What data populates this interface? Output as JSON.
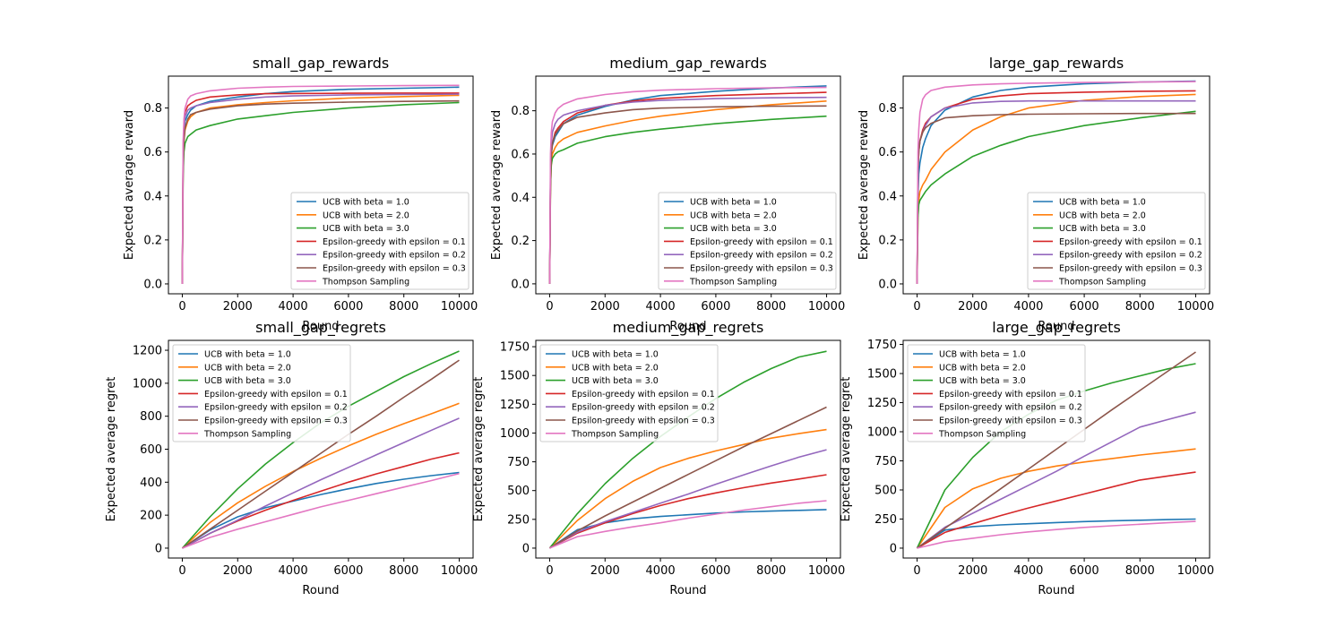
{
  "legend_labels": [
    "UCB with beta = 1.0",
    "UCB with beta = 2.0",
    "UCB with beta = 3.0",
    "Epsilon-greedy with epsilon = 0.1",
    "Epsilon-greedy with epsilon = 0.2",
    "Epsilon-greedy with epsilon = 0.3",
    "Thompson Sampling"
  ],
  "series_colors": [
    "#1f77b4",
    "#ff7f0e",
    "#2ca02c",
    "#d62728",
    "#9467bd",
    "#8c564b",
    "#e377c2"
  ],
  "chart_data": [
    {
      "type": "line",
      "title": "small_gap_rewards",
      "xlabel": "Round",
      "ylabel": "Expected average reward",
      "xlim": [
        -500,
        10500
      ],
      "ylim": [
        -0.045,
        0.945
      ],
      "xticks": [
        0,
        2000,
        4000,
        6000,
        8000,
        10000
      ],
      "yticks": [
        0.0,
        0.2,
        0.4,
        0.6,
        0.8
      ],
      "ytick_labels": [
        "0.0",
        "0.2",
        "0.4",
        "0.6",
        "0.8"
      ],
      "legend_position": "lower-right",
      "x": [
        0,
        30,
        60,
        100,
        200,
        300,
        500,
        1000,
        2000,
        3000,
        4000,
        6000,
        8000,
        10000
      ],
      "series": [
        {
          "name": "UCB with beta = 1.0",
          "values": [
            0.0,
            0.58,
            0.68,
            0.74,
            0.77,
            0.79,
            0.81,
            0.83,
            0.85,
            0.865,
            0.875,
            0.885,
            0.89,
            0.895
          ]
        },
        {
          "name": "UCB with beta = 2.0",
          "values": [
            0.0,
            0.55,
            0.65,
            0.7,
            0.74,
            0.76,
            0.78,
            0.8,
            0.815,
            0.825,
            0.833,
            0.845,
            0.852,
            0.858
          ]
        },
        {
          "name": "UCB with beta = 3.0",
          "values": [
            0.0,
            0.5,
            0.6,
            0.64,
            0.67,
            0.68,
            0.7,
            0.72,
            0.75,
            0.765,
            0.78,
            0.8,
            0.815,
            0.825
          ]
        },
        {
          "name": "Epsilon-greedy with epsilon = 0.1",
          "values": [
            0.0,
            0.62,
            0.72,
            0.78,
            0.81,
            0.82,
            0.835,
            0.85,
            0.86,
            0.865,
            0.866,
            0.867,
            0.868,
            0.868
          ]
        },
        {
          "name": "Epsilon-greedy with epsilon = 0.2",
          "values": [
            0.0,
            0.6,
            0.7,
            0.76,
            0.79,
            0.8,
            0.81,
            0.825,
            0.84,
            0.85,
            0.855,
            0.86,
            0.862,
            0.863
          ]
        },
        {
          "name": "Epsilon-greedy with epsilon = 0.3",
          "values": [
            0.0,
            0.55,
            0.65,
            0.71,
            0.75,
            0.77,
            0.78,
            0.795,
            0.81,
            0.818,
            0.822,
            0.827,
            0.83,
            0.832
          ]
        },
        {
          "name": "Thompson Sampling",
          "values": [
            0.0,
            0.65,
            0.75,
            0.8,
            0.84,
            0.855,
            0.865,
            0.878,
            0.89,
            0.895,
            0.898,
            0.9,
            0.902,
            0.903
          ]
        }
      ]
    },
    {
      "type": "line",
      "title": "medium_gap_rewards",
      "xlabel": "Round",
      "ylabel": "Expected average reward",
      "xlim": [
        -500,
        10500
      ],
      "ylim": [
        -0.046,
        0.96
      ],
      "xticks": [
        0,
        2000,
        4000,
        6000,
        8000,
        10000
      ],
      "yticks": [
        0.0,
        0.2,
        0.4,
        0.6,
        0.8
      ],
      "ytick_labels": [
        "0.0",
        "0.2",
        "0.4",
        "0.6",
        "0.8"
      ],
      "legend_position": "lower-right",
      "x": [
        0,
        30,
        60,
        100,
        200,
        300,
        500,
        1000,
        2000,
        3000,
        4000,
        6000,
        8000,
        10000
      ],
      "series": [
        {
          "name": "UCB with beta = 1.0",
          "values": [
            0.0,
            0.5,
            0.6,
            0.64,
            0.68,
            0.7,
            0.74,
            0.78,
            0.82,
            0.85,
            0.87,
            0.89,
            0.905,
            0.915
          ]
        },
        {
          "name": "UCB with beta = 2.0",
          "values": [
            0.0,
            0.45,
            0.55,
            0.6,
            0.63,
            0.65,
            0.67,
            0.7,
            0.73,
            0.755,
            0.775,
            0.805,
            0.828,
            0.845
          ]
        },
        {
          "name": "UCB with beta = 3.0",
          "values": [
            0.0,
            0.45,
            0.55,
            0.58,
            0.6,
            0.61,
            0.62,
            0.65,
            0.68,
            0.7,
            0.715,
            0.74,
            0.76,
            0.775
          ]
        },
        {
          "name": "Epsilon-greedy with epsilon = 0.1",
          "values": [
            0.0,
            0.5,
            0.6,
            0.65,
            0.7,
            0.72,
            0.75,
            0.79,
            0.825,
            0.845,
            0.857,
            0.87,
            0.878,
            0.885
          ]
        },
        {
          "name": "Epsilon-greedy with epsilon = 0.2",
          "values": [
            0.0,
            0.55,
            0.65,
            0.7,
            0.74,
            0.76,
            0.78,
            0.8,
            0.825,
            0.84,
            0.848,
            0.856,
            0.86,
            0.862
          ]
        },
        {
          "name": "Epsilon-greedy with epsilon = 0.3",
          "values": [
            0.0,
            0.5,
            0.6,
            0.65,
            0.69,
            0.71,
            0.74,
            0.77,
            0.79,
            0.805,
            0.812,
            0.818,
            0.821,
            0.822
          ]
        },
        {
          "name": "Thompson Sampling",
          "values": [
            0.0,
            0.6,
            0.7,
            0.75,
            0.79,
            0.81,
            0.83,
            0.855,
            0.875,
            0.888,
            0.895,
            0.902,
            0.906,
            0.908
          ]
        }
      ]
    },
    {
      "type": "line",
      "title": "large_gap_rewards",
      "xlabel": "Round",
      "ylabel": "Expected average reward",
      "xlim": [
        -500,
        10500
      ],
      "ylim": [
        -0.045,
        0.945
      ],
      "xticks": [
        0,
        2000,
        4000,
        6000,
        8000,
        10000
      ],
      "yticks": [
        0.0,
        0.2,
        0.4,
        0.6,
        0.8
      ],
      "ytick_labels": [
        "0.0",
        "0.2",
        "0.4",
        "0.6",
        "0.8"
      ],
      "legend_position": "lower-right",
      "x": [
        0,
        30,
        60,
        100,
        200,
        300,
        500,
        1000,
        2000,
        3000,
        4000,
        6000,
        8000,
        10000
      ],
      "series": [
        {
          "name": "UCB with beta = 1.0",
          "values": [
            0.0,
            0.4,
            0.5,
            0.55,
            0.62,
            0.66,
            0.72,
            0.79,
            0.85,
            0.88,
            0.895,
            0.91,
            0.918,
            0.922
          ]
        },
        {
          "name": "UCB with beta = 2.0",
          "values": [
            0.0,
            0.3,
            0.38,
            0.42,
            0.45,
            0.47,
            0.52,
            0.6,
            0.7,
            0.76,
            0.8,
            0.835,
            0.852,
            0.862
          ]
        },
        {
          "name": "UCB with beta = 3.0",
          "values": [
            0.0,
            0.3,
            0.36,
            0.38,
            0.4,
            0.42,
            0.45,
            0.5,
            0.58,
            0.63,
            0.67,
            0.72,
            0.755,
            0.785
          ]
        },
        {
          "name": "Epsilon-greedy with epsilon = 0.1",
          "values": [
            0.0,
            0.5,
            0.6,
            0.65,
            0.7,
            0.73,
            0.76,
            0.8,
            0.84,
            0.855,
            0.865,
            0.872,
            0.876,
            0.878
          ]
        },
        {
          "name": "Epsilon-greedy with epsilon = 0.2",
          "values": [
            0.0,
            0.5,
            0.6,
            0.65,
            0.69,
            0.72,
            0.76,
            0.8,
            0.823,
            0.83,
            0.832,
            0.832,
            0.832,
            0.832
          ]
        },
        {
          "name": "Epsilon-greedy with epsilon = 0.3",
          "values": [
            0.0,
            0.5,
            0.6,
            0.65,
            0.69,
            0.71,
            0.73,
            0.755,
            0.765,
            0.77,
            0.772,
            0.774,
            0.775,
            0.775
          ]
        },
        {
          "name": "Thompson Sampling",
          "values": [
            0.0,
            0.6,
            0.7,
            0.78,
            0.84,
            0.86,
            0.88,
            0.895,
            0.905,
            0.91,
            0.913,
            0.916,
            0.918,
            0.92
          ]
        }
      ]
    },
    {
      "type": "line",
      "title": "small_gap_regrets",
      "xlabel": "Round",
      "ylabel": "Expected average regret",
      "xlim": [
        -500,
        10500
      ],
      "ylim": [
        -60,
        1260
      ],
      "xticks": [
        0,
        2000,
        4000,
        6000,
        8000,
        10000
      ],
      "yticks": [
        0,
        200,
        400,
        600,
        800,
        1000,
        1200
      ],
      "ytick_labels": [
        "0",
        "200",
        "400",
        "600",
        "800",
        "1000",
        "1200"
      ],
      "legend_position": "upper-left",
      "x": [
        0,
        1000,
        2000,
        3000,
        4000,
        5000,
        6000,
        7000,
        8000,
        9000,
        10000
      ],
      "series": [
        {
          "name": "UCB with beta = 1.0",
          "values": [
            0,
            110,
            190,
            245,
            285,
            325,
            360,
            392,
            418,
            440,
            458
          ]
        },
        {
          "name": "UCB with beta = 2.0",
          "values": [
            0,
            155,
            275,
            375,
            465,
            545,
            620,
            690,
            755,
            815,
            878
          ]
        },
        {
          "name": "UCB with beta = 3.0",
          "values": [
            0,
            190,
            360,
            510,
            640,
            760,
            860,
            950,
            1040,
            1120,
            1195
          ]
        },
        {
          "name": "Epsilon-greedy with epsilon = 0.1",
          "values": [
            0,
            90,
            165,
            230,
            290,
            345,
            400,
            450,
            495,
            540,
            578
          ]
        },
        {
          "name": "Epsilon-greedy with epsilon = 0.2",
          "values": [
            0,
            90,
            170,
            255,
            335,
            415,
            490,
            565,
            640,
            715,
            788
          ]
        },
        {
          "name": "Epsilon-greedy with epsilon = 0.3",
          "values": [
            0,
            115,
            230,
            345,
            460,
            575,
            690,
            800,
            915,
            1025,
            1140
          ]
        },
        {
          "name": "Thompson Sampling",
          "values": [
            0,
            65,
            115,
            160,
            205,
            250,
            290,
            330,
            370,
            410,
            452
          ]
        }
      ]
    },
    {
      "type": "line",
      "title": "medium_gap_regrets",
      "xlabel": "Round",
      "ylabel": "Expected average regret",
      "xlim": [
        -500,
        10500
      ],
      "ylim": [
        -86,
        1805
      ],
      "xticks": [
        0,
        2000,
        4000,
        6000,
        8000,
        10000
      ],
      "yticks": [
        0,
        250,
        500,
        750,
        1000,
        1250,
        1500,
        1750
      ],
      "ytick_labels": [
        "0",
        "250",
        "500",
        "750",
        "1000",
        "1250",
        "1500",
        "1750"
      ],
      "legend_position": "upper-left",
      "x": [
        0,
        1000,
        2000,
        3000,
        4000,
        5000,
        6000,
        7000,
        8000,
        9000,
        10000
      ],
      "series": [
        {
          "name": "UCB with beta = 1.0",
          "values": [
            0,
            160,
            220,
            255,
            275,
            290,
            305,
            315,
            322,
            328,
            335
          ]
        },
        {
          "name": "UCB with beta = 2.0",
          "values": [
            0,
            240,
            430,
            580,
            700,
            780,
            845,
            900,
            955,
            995,
            1030
          ]
        },
        {
          "name": "UCB with beta = 3.0",
          "values": [
            0,
            300,
            560,
            780,
            970,
            1140,
            1300,
            1440,
            1560,
            1660,
            1710
          ]
        },
        {
          "name": "Epsilon-greedy with epsilon = 0.1",
          "values": [
            0,
            130,
            220,
            300,
            370,
            430,
            480,
            525,
            565,
            600,
            638
          ]
        },
        {
          "name": "Epsilon-greedy with epsilon = 0.2",
          "values": [
            0,
            140,
            230,
            310,
            390,
            470,
            555,
            635,
            715,
            790,
            855
          ]
        },
        {
          "name": "Epsilon-greedy with epsilon = 0.3",
          "values": [
            0,
            150,
            280,
            400,
            520,
            640,
            760,
            880,
            995,
            1110,
            1225
          ]
        },
        {
          "name": "Thompson Sampling",
          "values": [
            0,
            100,
            145,
            185,
            220,
            260,
            295,
            330,
            360,
            390,
            412
          ]
        }
      ]
    },
    {
      "type": "line",
      "title": "large_gap_regrets",
      "xlabel": "Round",
      "ylabel": "Expected average regret",
      "xlim": [
        -500,
        10500
      ],
      "ylim": [
        -85,
        1785
      ],
      "xticks": [
        0,
        2000,
        4000,
        6000,
        8000,
        10000
      ],
      "yticks": [
        0,
        250,
        500,
        750,
        1000,
        1250,
        1500,
        1750
      ],
      "ytick_labels": [
        "0",
        "250",
        "500",
        "750",
        "1000",
        "1250",
        "1500",
        "1750"
      ],
      "legend_position": "upper-left",
      "x": [
        0,
        1000,
        2000,
        3000,
        4000,
        5000,
        6000,
        7000,
        8000,
        9000,
        10000
      ],
      "series": [
        {
          "name": "UCB with beta = 1.0",
          "values": [
            0,
            155,
            185,
            200,
            210,
            220,
            228,
            235,
            240,
            245,
            250
          ]
        },
        {
          "name": "UCB with beta = 2.0",
          "values": [
            0,
            350,
            510,
            600,
            660,
            705,
            740,
            770,
            800,
            825,
            852
          ]
        },
        {
          "name": "UCB with beta = 3.0",
          "values": [
            0,
            500,
            780,
            1000,
            1150,
            1270,
            1350,
            1420,
            1480,
            1540,
            1585
          ]
        },
        {
          "name": "Epsilon-greedy with epsilon = 0.1",
          "values": [
            0,
            135,
            210,
            280,
            345,
            405,
            465,
            525,
            585,
            620,
            653
          ]
        },
        {
          "name": "Epsilon-greedy with epsilon = 0.2",
          "values": [
            0,
            180,
            300,
            420,
            540,
            660,
            790,
            915,
            1040,
            1105,
            1168
          ]
        },
        {
          "name": "Epsilon-greedy with epsilon = 0.3",
          "values": [
            0,
            170,
            340,
            510,
            680,
            850,
            1020,
            1190,
            1355,
            1520,
            1685
          ]
        },
        {
          "name": "Thompson Sampling",
          "values": [
            0,
            55,
            85,
            115,
            140,
            160,
            178,
            192,
            205,
            218,
            230
          ]
        }
      ]
    }
  ]
}
